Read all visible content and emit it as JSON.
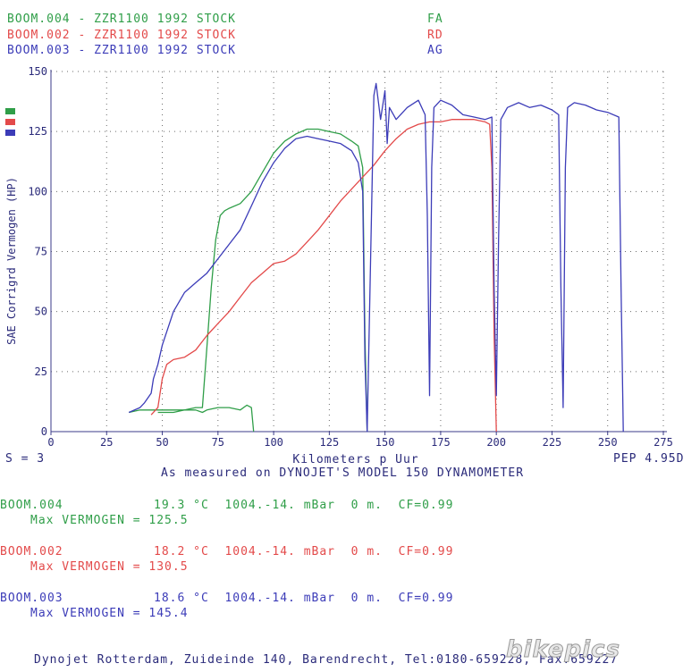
{
  "legend": [
    {
      "run": "BOOM.004 - ZZR1100 1992 STOCK",
      "code": "FA",
      "color": "#2f9e48"
    },
    {
      "run": "BOOM.002 - ZZR1100 1992 STOCK",
      "code": "RD",
      "color": "#e34a4a"
    },
    {
      "run": "BOOM.003 - ZZR1100 1992 STOCK",
      "code": "AG",
      "color": "#3c3cb8"
    }
  ],
  "chart_data": {
    "type": "line",
    "xlabel": "Kilometers p Uur",
    "ylabel": "SAE Corrigrd Vermogen (HP)",
    "xlim": [
      0,
      275
    ],
    "ylim": [
      0,
      150
    ],
    "x_ticks": [
      "0",
      "25",
      "50",
      "75",
      "100",
      "125",
      "150",
      "175",
      "200",
      "225",
      "250",
      "275"
    ],
    "y_ticks": [
      "0",
      "25",
      "50",
      "75",
      "100",
      "125",
      "150"
    ],
    "grid": true,
    "series": [
      {
        "name": "BOOM.004 - ZZR1100 1992 STOCK",
        "color": "#2f9e48",
        "x": [
          35,
          40,
          45,
          50,
          55,
          60,
          65,
          68,
          70,
          72,
          74,
          76,
          78,
          80,
          85,
          90,
          95,
          100,
          105,
          110,
          115,
          120,
          125,
          130,
          135,
          138,
          140,
          141,
          142
        ],
        "y": [
          8,
          9,
          9,
          9,
          9,
          9,
          10,
          10,
          35,
          60,
          80,
          90,
          92,
          93,
          95,
          100,
          108,
          116,
          121,
          124,
          126,
          126,
          125,
          124,
          121,
          119,
          110,
          40,
          0
        ]
      },
      {
        "name": "BOOM.004 low trace",
        "color": "#2f9e48",
        "x": [
          48,
          55,
          60,
          65,
          68,
          70,
          75,
          80,
          85,
          88,
          90,
          91
        ],
        "y": [
          8,
          8,
          9,
          9,
          8,
          9,
          10,
          10,
          9,
          11,
          10,
          0
        ]
      },
      {
        "name": "BOOM.002 - ZZR1100 1992 STOCK",
        "color": "#e34a4a",
        "x": [
          45,
          48,
          50,
          52,
          55,
          60,
          65,
          70,
          75,
          80,
          85,
          90,
          95,
          100,
          105,
          110,
          115,
          120,
          125,
          130,
          135,
          140,
          145,
          150,
          155,
          160,
          165,
          170,
          175,
          180,
          185,
          190,
          195,
          197,
          198,
          199,
          200
        ],
        "y": [
          7,
          10,
          22,
          28,
          30,
          31,
          34,
          40,
          45,
          50,
          56,
          62,
          66,
          70,
          71,
          74,
          79,
          84,
          90,
          96,
          101,
          106,
          111,
          117,
          122,
          126,
          128,
          129,
          129,
          130,
          130,
          130,
          129,
          128,
          110,
          40,
          0
        ]
      },
      {
        "name": "BOOM.003 - ZZR1100 1992 STOCK",
        "color": "#3c3cb8",
        "x": [
          35,
          40,
          42,
          45,
          46,
          48,
          50,
          55,
          60,
          65,
          70,
          75,
          80,
          85,
          90,
          95,
          100,
          105,
          110,
          115,
          120,
          125,
          130,
          135,
          138,
          140,
          141,
          142,
          145,
          146,
          148,
          150,
          151,
          152,
          155,
          160,
          165,
          168,
          169,
          170,
          171,
          172,
          175,
          180,
          185,
          190,
          195,
          198,
          199,
          200,
          201,
          202,
          205,
          210,
          215,
          220,
          225,
          228,
          229,
          230,
          231,
          232,
          235,
          240,
          245,
          250,
          255,
          256,
          257
        ],
        "y": [
          8,
          10,
          12,
          16,
          22,
          28,
          36,
          50,
          58,
          62,
          66,
          72,
          78,
          84,
          94,
          104,
          112,
          118,
          122,
          123,
          122,
          121,
          120,
          117,
          112,
          100,
          30,
          0,
          140,
          145,
          130,
          142,
          120,
          135,
          130,
          135,
          138,
          132,
          90,
          15,
          110,
          135,
          138,
          136,
          132,
          131,
          130,
          131,
          60,
          15,
          80,
          130,
          135,
          137,
          135,
          136,
          134,
          132,
          60,
          10,
          110,
          135,
          137,
          136,
          134,
          133,
          131,
          60,
          0
        ]
      }
    ]
  },
  "footer_left": "S = 3",
  "footer_right": "PEP 4.95D",
  "measured_note": "As measured on DYNOJET'S MODEL 150 DYNAMOMETER",
  "runs": [
    {
      "id": "BOOM.004",
      "conditions": "19.3 °C  1004.-14. mBar  0 m.  CF=0.99",
      "max": "Max VERMOGEN = 125.5",
      "color": "#2f9e48"
    },
    {
      "id": "BOOM.002",
      "conditions": "18.2 °C  1004.-14. mBar  0 m.  CF=0.99",
      "max": "Max VERMOGEN = 130.5",
      "color": "#e34a4a"
    },
    {
      "id": "BOOM.003",
      "conditions": "18.6 °C  1004.-14. mBar  0 m.  CF=0.99",
      "max": "Max VERMOGEN = 145.4",
      "color": "#3c3cb8"
    }
  ],
  "address": "Dynojet Rotterdam, Zuideinde 140, Barendrecht, Tel:0180-659228, Fax:659227",
  "watermark": "bikepics"
}
